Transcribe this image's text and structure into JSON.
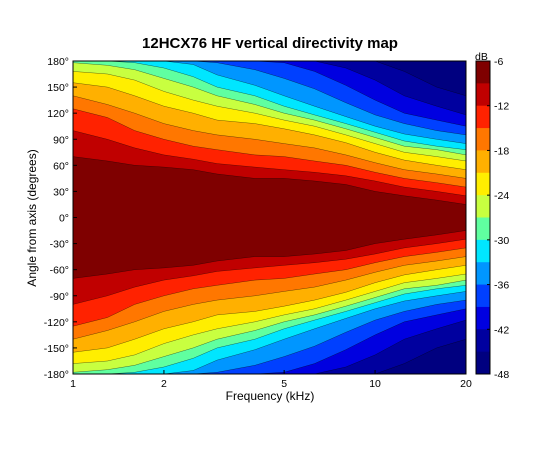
{
  "chart_data": {
    "type": "heatmap",
    "title": "12HCX76 HF vertical directivity map",
    "xlabel": "Frequency (kHz)",
    "ylabel": "Angle from axis (degrees)",
    "x_scale": "log",
    "x_range": [
      1,
      20
    ],
    "x_ticks": [
      1,
      2,
      5,
      10,
      20
    ],
    "x_tick_labels": [
      "1",
      "2",
      "5",
      "10",
      "20"
    ],
    "y_range": [
      -180,
      180
    ],
    "y_ticks": [
      180,
      150,
      120,
      90,
      60,
      30,
      0,
      -30,
      -60,
      -90,
      -120,
      -150,
      -180
    ],
    "y_tick_labels": [
      "180°",
      "150°",
      "120°",
      "90°",
      "60°",
      "30°",
      "0°",
      "-30°",
      "-60°",
      "-90°",
      "-120°",
      "-150°",
      "-180°"
    ],
    "grid": false,
    "colorbar": {
      "unit_label": "dB",
      "range": [
        -48,
        -6
      ],
      "ticks": [
        -6,
        -12,
        -18,
        -24,
        -30,
        -36,
        -42,
        -48
      ],
      "tick_labels": [
        "-6",
        "-12",
        "-18",
        "-24",
        "-30",
        "-36",
        "-42",
        "-48"
      ],
      "colormap": "jet"
    },
    "contour_levels_db": [
      -9,
      -12,
      -15,
      -18,
      -21,
      -24,
      -27,
      -30,
      -33,
      -36,
      -39,
      -42,
      -45
    ],
    "level_colors": [
      "#7f0000",
      "#c00000",
      "#ff2200",
      "#ff7700",
      "#ffb000",
      "#ffee00",
      "#c8ff40",
      "#60ffa0",
      "#00e6ff",
      "#0096ff",
      "#0040ff",
      "#0000e0",
      "#00009f",
      "#000080"
    ],
    "boundary_frequencies_khz": [
      1,
      1.3,
      1.6,
      2,
      2.5,
      3,
      4,
      5,
      6.3,
      8,
      10,
      12.5,
      16,
      20
    ],
    "boundary_angles_deg": [
      [
        70,
        65,
        60,
        58,
        55,
        50,
        45,
        45,
        42,
        38,
        30,
        25,
        20,
        15
      ],
      [
        100,
        90,
        80,
        72,
        67,
        62,
        58,
        55,
        52,
        48,
        42,
        35,
        30,
        25
      ],
      [
        125,
        115,
        100,
        90,
        82,
        78,
        72,
        70,
        65,
        60,
        52,
        45,
        40,
        35
      ],
      [
        140,
        130,
        120,
        108,
        100,
        95,
        90,
        85,
        80,
        72,
        63,
        55,
        50,
        45
      ],
      [
        155,
        150,
        140,
        128,
        120,
        112,
        108,
        102,
        95,
        86,
        75,
        66,
        60,
        55
      ],
      [
        168,
        165,
        158,
        145,
        135,
        128,
        120,
        112,
        105,
        95,
        85,
        75,
        70,
        65
      ],
      [
        178,
        175,
        170,
        160,
        150,
        140,
        130,
        120,
        112,
        102,
        92,
        82,
        78,
        72
      ],
      [
        180,
        180,
        178,
        172,
        162,
        150,
        140,
        128,
        118,
        108,
        98,
        88,
        82,
        78
      ],
      [
        180,
        180,
        180,
        180,
        176,
        164,
        152,
        140,
        128,
        116,
        105,
        96,
        90,
        85
      ],
      [
        180,
        180,
        180,
        180,
        180,
        178,
        170,
        160,
        148,
        132,
        118,
        108,
        100,
        95
      ],
      [
        180,
        180,
        180,
        180,
        180,
        180,
        180,
        178,
        168,
        152,
        135,
        120,
        112,
        105
      ],
      [
        180,
        180,
        180,
        180,
        180,
        180,
        180,
        180,
        180,
        172,
        158,
        140,
        128,
        118
      ],
      [
        180,
        180,
        180,
        180,
        180,
        180,
        180,
        180,
        180,
        180,
        180,
        168,
        150,
        140
      ]
    ]
  }
}
